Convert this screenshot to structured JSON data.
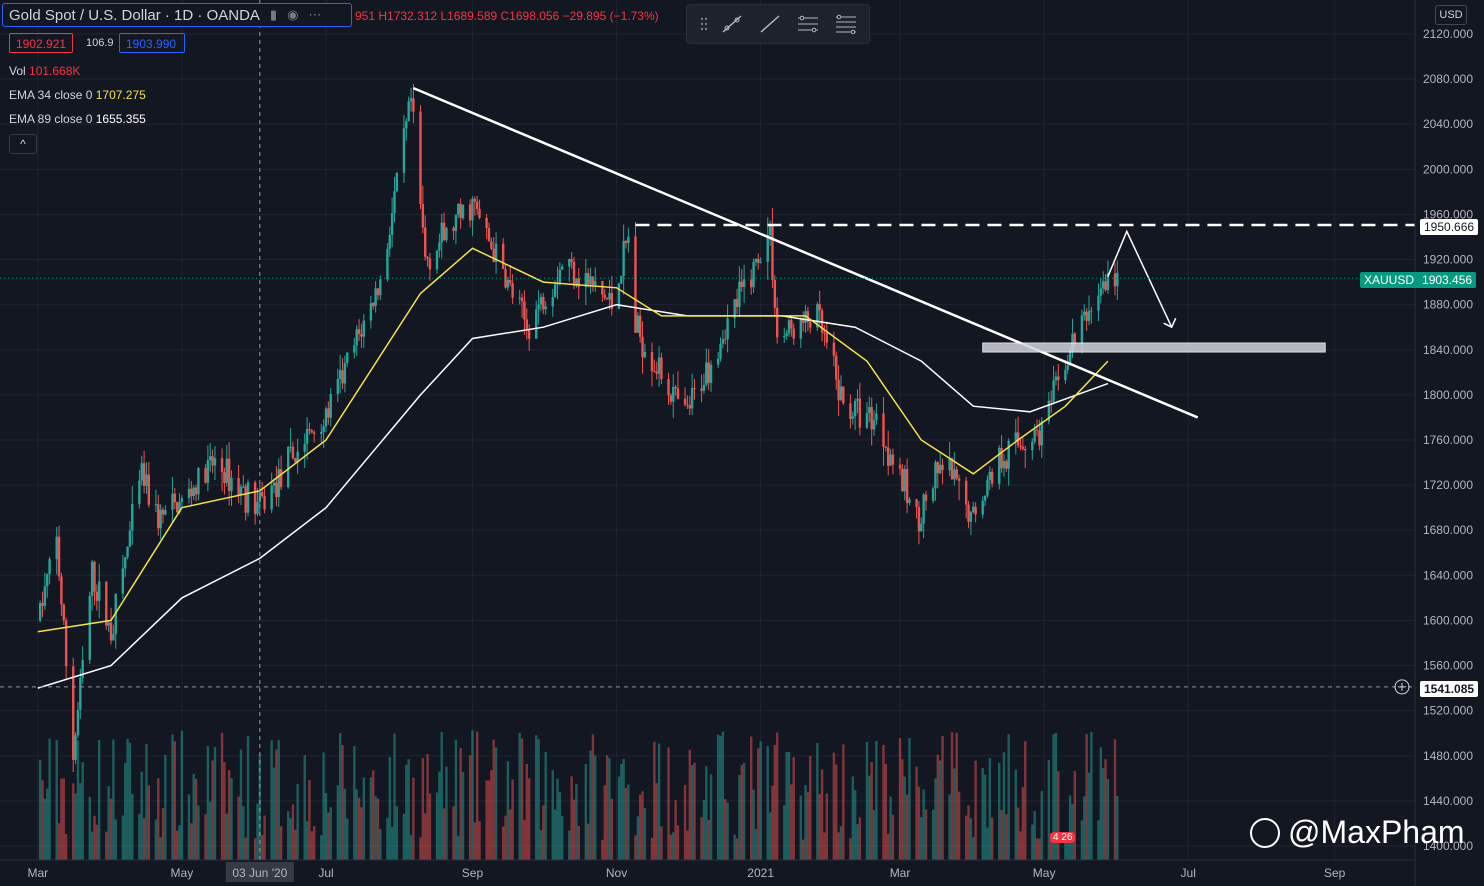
{
  "header": {
    "title": "Gold Spot / U.S. Dollar · 1D · OANDA",
    "ohlc": {
      "open_partial": "951",
      "high": "H1732.312",
      "low": "L1689.589",
      "close": "C1698.056",
      "change": "−29.895 (−1.73%)"
    },
    "bid": "1902.921",
    "spread": "106.9",
    "ask": "1903.990"
  },
  "indicators": {
    "vol": {
      "label": "Vol",
      "value": "101.668K"
    },
    "ema34": {
      "label": "EMA 34 close 0",
      "value": "1707.275"
    },
    "ema89": {
      "label": "EMA 89 close 0",
      "value": "1655.355"
    },
    "collapse": "^"
  },
  "currency_badge": "USD",
  "price_tags": {
    "resistance": "1950.666",
    "symbol": "XAUUSD",
    "last_price": "1903.456",
    "crosshair": "1541.085"
  },
  "watermark": "@MaxPham",
  "flag_badge": "4 26",
  "colors": {
    "background": "#131722",
    "up": "#26a69a",
    "down": "#ef5350",
    "ema34": "#f5e14a",
    "ema89": "#ffffff",
    "grid": "#1f2430"
  },
  "chart_data": {
    "type": "candlestick",
    "symbol": "XAUUSD",
    "timeframe": "1D",
    "ylim": [
      1380,
      2140
    ],
    "y_ticks": [
      1400,
      1440,
      1480,
      1520,
      1560,
      1600,
      1640,
      1680,
      1720,
      1760,
      1800,
      1840,
      1880,
      1920,
      1960,
      2000,
      2040,
      2080,
      2120
    ],
    "x_ticks": [
      "Mar",
      "May",
      "03 Jun '20",
      "Jul",
      "Sep",
      "Nov",
      "2021",
      "Mar",
      "May",
      "Jul",
      "Sep"
    ],
    "price_path": {
      "x": [
        "2020-03-01",
        "2020-03-09",
        "2020-03-16",
        "2020-03-24",
        "2020-04-01",
        "2020-04-14",
        "2020-04-21",
        "2020-05-01",
        "2020-05-15",
        "2020-06-03",
        "2020-06-22",
        "2020-07-01",
        "2020-07-24",
        "2020-08-06",
        "2020-08-12",
        "2020-08-20",
        "2020-09-01",
        "2020-09-24",
        "2020-10-10",
        "2020-10-30",
        "2020-11-06",
        "2020-11-09",
        "2020-11-30",
        "2020-12-15",
        "2021-01-05",
        "2021-01-08",
        "2021-01-25",
        "2021-02-05",
        "2021-02-19",
        "2021-03-08",
        "2021-03-20",
        "2021-03-31",
        "2021-04-12",
        "2021-04-30",
        "2021-05-14",
        "2021-05-25",
        "2021-06-01"
      ],
      "close": [
        1600,
        1670,
        1480,
        1640,
        1590,
        1730,
        1690,
        1705,
        1740,
        1700,
        1760,
        1780,
        1900,
        2060,
        1920,
        1940,
        1970,
        1860,
        1920,
        1880,
        1940,
        1860,
        1780,
        1850,
        1945,
        1850,
        1870,
        1790,
        1780,
        1690,
        1740,
        1690,
        1745,
        1770,
        1850,
        1895,
        1905
      ]
    },
    "ema34": {
      "x": [
        "2020-03-01",
        "2020-04-01",
        "2020-05-01",
        "2020-06-03",
        "2020-07-01",
        "2020-08-10",
        "2020-09-01",
        "2020-10-01",
        "2020-11-01",
        "2020-11-20",
        "2020-12-20",
        "2021-01-20",
        "2021-02-15",
        "2021-03-10",
        "2021-04-01",
        "2021-04-20",
        "2021-05-10",
        "2021-05-28"
      ],
      "values": [
        1590,
        1600,
        1700,
        1715,
        1760,
        1890,
        1930,
        1900,
        1895,
        1870,
        1870,
        1870,
        1830,
        1760,
        1730,
        1760,
        1790,
        1830
      ]
    },
    "ema89": {
      "x": [
        "2020-03-01",
        "2020-04-01",
        "2020-05-01",
        "2020-06-03",
        "2020-07-01",
        "2020-08-10",
        "2020-09-01",
        "2020-10-01",
        "2020-11-01",
        "2020-12-01",
        "2021-01-10",
        "2021-02-10",
        "2021-03-10",
        "2021-04-01",
        "2021-04-25",
        "2021-05-28"
      ],
      "values": [
        1540,
        1560,
        1620,
        1655,
        1700,
        1800,
        1850,
        1860,
        1880,
        1870,
        1870,
        1860,
        1830,
        1790,
        1785,
        1810
      ]
    },
    "annotations": {
      "trendline": {
        "from": [
          "2020-08-07",
          2072
        ],
        "to": [
          "2021-07-05",
          1780
        ]
      },
      "resistance_level": 1950.666,
      "resistance_from": "2020-11-09",
      "support_zone": {
        "from": "2021-04-05",
        "to": "2021-08-28",
        "low": 1838,
        "high": 1846
      },
      "projection": [
        [
          "2021-05-28",
          1905
        ],
        [
          "2021-06-05",
          1945
        ],
        [
          "2021-06-24",
          1860
        ]
      ],
      "crosshair_x": "2020-06-03",
      "crosshair_y": 1541.085,
      "last_price": 1903.456
    }
  }
}
